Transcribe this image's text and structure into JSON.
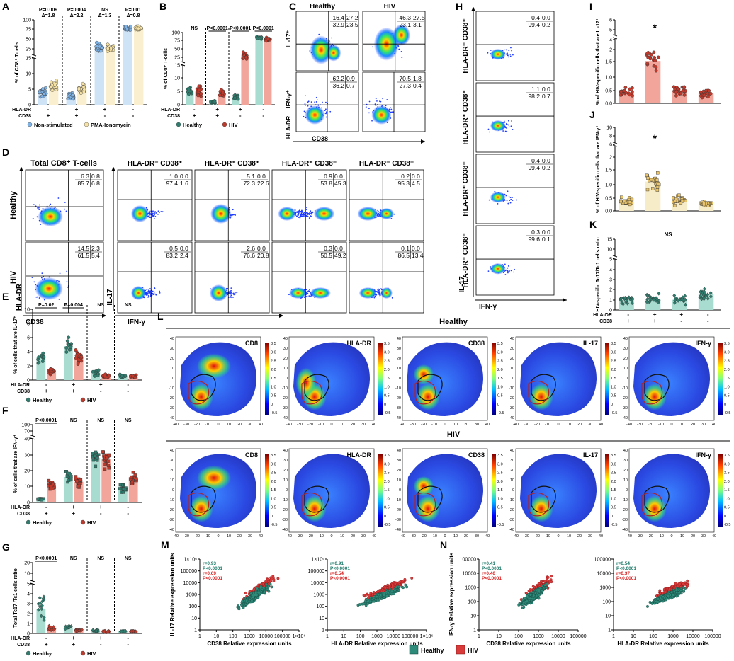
{
  "colors": {
    "healthy": "#2e7d6e",
    "healthy_bar": "#a8dcd0",
    "hiv": "#c0392b",
    "hiv_bar": "#f2a59a",
    "nonstim": "#7fb3e6",
    "pma": "#f5e1a3",
    "gold": "#e9c46a"
  },
  "panel_letters": [
    "A",
    "B",
    "C",
    "D",
    "E",
    "F",
    "G",
    "H",
    "I",
    "J",
    "K",
    "L",
    "M",
    "N"
  ],
  "axis_labels": {
    "pct_cd8": "% of CD8⁺ T-cells",
    "hla_dr": "HLA-DR",
    "cd38": "CD38",
    "il17_plus": "IL-17⁺",
    "ifng_plus": "IFN-γ⁺",
    "il17": "IL-17",
    "ifng": "IFN-γ",
    "pct_il17": "% of cells that are IL-17⁺",
    "pct_ifng": "% of cells that are IFN-γ⁺",
    "tc17_ratio": "Total Tc17 /Tc1 cells ratio",
    "hiv_il17": "% of HIV-specific cells that are IL-17⁺",
    "hiv_ifng": "% of HIV-specific cells that are IFN-γ⁺",
    "hiv_ratio": "HIV-specific Tc17/Tc1 cells ratio",
    "il17_rel": "IL-17 Relative expression units",
    "ifng_rel": "IFN-γ Relative expression units",
    "cd38_rel": "CD38 Relative expression units",
    "hladr_rel": "HLA-DR Relative expression units"
  },
  "signs": {
    "hla_dr": [
      "-",
      "+",
      "+",
      "-"
    ],
    "cd38": [
      "+",
      "+",
      "-",
      "-"
    ]
  },
  "legends": {
    "nonstim": "Non-stimulated",
    "pma": "PMA-Ionomycin",
    "healthy": "Healthy",
    "hiv": "HIV"
  },
  "panelA": {
    "stats": [
      {
        "p": "P=0.009",
        "d": "Δ=1.8"
      },
      {
        "p": "P=0.004",
        "d": "Δ=2.2"
      },
      {
        "p": "NS",
        "d": "Δ=1.3"
      },
      {
        "p": "P=0.01",
        "d": "Δ=0.8"
      }
    ],
    "yticks": [
      "100",
      "75",
      "50",
      "25",
      "15",
      "10",
      "5",
      "0"
    ]
  },
  "panelB": {
    "stats": [
      "NS",
      "P<0.0001",
      "P<0.0001",
      "P<0.0001"
    ],
    "yticks": [
      "100",
      "75",
      "50",
      "25",
      "15",
      "10",
      "5",
      "0"
    ]
  },
  "panelC": {
    "titles": [
      "Healthy",
      "HIV"
    ],
    "quads_top": [
      [
        "16.4",
        "27.2",
        "32.9",
        "23.5"
      ],
      [
        "46.3",
        "27.5",
        "23.1",
        "3.1"
      ]
    ],
    "quads_bottom": [
      [
        "62.2",
        "0.9",
        "36.2",
        "0.7"
      ],
      [
        "70.5",
        "1.8",
        "27.3",
        "0.4"
      ]
    ]
  },
  "panelD": {
    "total_title": "Total CD8⁺ T-cells",
    "titles": [
      "HLA-DR⁻ CD38⁺",
      "HLA-DR⁺ CD38⁺",
      "HLA-DR⁺ CD38⁻",
      "HLA-DR⁻ CD38⁻"
    ],
    "rows": [
      "Healthy",
      "HIV"
    ],
    "total_quads": [
      [
        "6.3",
        "0.8",
        "85.7",
        "6.8"
      ],
      [
        "14.5",
        "2.3",
        "61.5",
        "5.4"
      ]
    ],
    "quads": [
      [
        [
          "1.0",
          "0.0",
          "97.4",
          "1.6"
        ],
        [
          "5.1",
          "0.0",
          "72.3",
          "22.6"
        ],
        [
          "0.9",
          "0.0",
          "53.8",
          "45.3"
        ],
        [
          "0.2",
          "0.0",
          "95.3",
          "4.5"
        ]
      ],
      [
        [
          "0.5",
          "0.0",
          "83.2",
          "2.4"
        ],
        [
          "2.6",
          "0.0",
          "76.6",
          "20.8"
        ],
        [
          "0.3",
          "0.0",
          "50.5",
          "49.2"
        ],
        [
          "0.1",
          "0.0",
          "86.5",
          "13.4"
        ]
      ]
    ]
  },
  "panelE": {
    "stats": [
      "P=0.02",
      "P=0.004",
      "NS",
      "NS"
    ],
    "yticks": [
      "10",
      "8",
      "6",
      "4",
      "2",
      "0"
    ]
  },
  "panelF": {
    "stats": [
      "P<0.0001",
      "NS",
      "NS",
      "NS"
    ],
    "yticks": [
      "100",
      "70",
      "40",
      "30",
      "20",
      "10",
      "0"
    ]
  },
  "panelG": {
    "stats": [
      "P<0.0001",
      "NS",
      "NS",
      "NS"
    ],
    "yticks": [
      "20",
      "10",
      "5",
      "4",
      "3",
      "2",
      "1",
      "0"
    ]
  },
  "panelH": {
    "titles": [
      "HLA-DR⁻ CD38⁺",
      "HLA-DR⁺ CD38⁺",
      "HLA-DR⁺ CD38⁻",
      "HLA-DR⁻ CD38⁻"
    ],
    "quads": [
      [
        "0.4",
        "0.0",
        "99.4",
        "0.2"
      ],
      [
        "1.1",
        "0.0",
        "98.2",
        "0.7"
      ],
      [
        "0.4",
        "0.0",
        "99.4",
        "0.2"
      ],
      [
        "0.3",
        "0.0",
        "99.6",
        "0.1"
      ]
    ]
  },
  "panelI": {
    "yticks": [
      "6",
      "5",
      "4",
      "2",
      "1.5",
      "1.0",
      "0.5",
      "0.0"
    ],
    "star": "*"
  },
  "panelJ": {
    "yticks": [
      "10",
      "8",
      "6",
      "2",
      "1.5",
      "1.0",
      "0.5",
      "0.0"
    ],
    "star": "*"
  },
  "panelK": {
    "yticks": [
      "15",
      "10",
      "5",
      "4",
      "3",
      "2",
      "1",
      "0"
    ],
    "stat": "NS"
  },
  "panelL": {
    "healthy_title": "Healthy",
    "hiv_title": "HIV",
    "markers": [
      "CD8",
      "HLA-DR",
      "CD38",
      "IL-17",
      "IFN-γ"
    ],
    "xticks": [
      "-40",
      "-30",
      "-20",
      "-10",
      "0",
      "10",
      "20",
      "30",
      "40"
    ],
    "yticks": [
      "40",
      "30",
      "20",
      "10",
      "0",
      "-10",
      "-20",
      "-30",
      "-40"
    ],
    "scale": [
      "3.5",
      "3.0",
      "2.5",
      "2.0",
      "1.5",
      "1.0",
      "0.5",
      "0",
      "-0.5"
    ]
  },
  "panelM": {
    "stats": [
      {
        "r1": "r=0.93",
        "p1": "P<0.0001",
        "r2": "r=0.69",
        "p2": "P<0.0001"
      },
      {
        "r1": "r=0.91",
        "p1": "P<0.0001",
        "r2": "r=0.54",
        "p2": "P<0.0001"
      }
    ],
    "yticks": [
      "1×10⁶",
      "100000",
      "10000",
      "1000",
      "100",
      "10",
      "1"
    ],
    "xticks": [
      "1",
      "10",
      "100",
      "1000",
      "10000",
      "100000",
      "1×10⁶"
    ]
  },
  "panelN": {
    "stats": [
      {
        "r1": "r=0.41",
        "p1": "P<0.0001",
        "r2": "r=0.40",
        "p2": "P<0.0001"
      },
      {
        "r1": "r=0.54",
        "p1": "P<0.0001",
        "r2": "r=0.37",
        "p2": "P<0.0001"
      }
    ],
    "yticks": [
      "100000",
      "10000",
      "1000",
      "100",
      "10",
      "1"
    ],
    "xticks": [
      "1",
      "10",
      "100",
      "1000",
      "10000",
      "100000"
    ]
  },
  "chart_data": [
    {
      "panel": "A",
      "type": "bar",
      "title": "",
      "ylabel": "% of CD8⁺ T-cells",
      "ylim": [
        0,
        100
      ],
      "categories": [
        "HLA-DR- CD38+",
        "HLA-DR+ CD38+",
        "HLA-DR+ CD38-",
        "HLA-DR- CD38-"
      ],
      "series": [
        {
          "name": "Non-stimulated",
          "values": [
            4,
            3,
            35,
            85
          ]
        },
        {
          "name": "PMA-Ionomycin",
          "values": [
            6,
            5,
            30,
            84
          ]
        }
      ]
    },
    {
      "panel": "B",
      "type": "bar",
      "ylabel": "% of CD8⁺ T-cells",
      "ylim": [
        0,
        100
      ],
      "categories": [
        "HLA-DR- CD38+",
        "HLA-DR+ CD38+",
        "HLA-DR+ CD38-",
        "HLA-DR- CD38-"
      ],
      "series": [
        {
          "name": "Healthy",
          "values": [
            5,
            1,
            3,
            85
          ]
        },
        {
          "name": "HIV",
          "values": [
            5,
            4,
            35,
            80
          ]
        }
      ]
    },
    {
      "panel": "E",
      "type": "bar",
      "ylabel": "% of cells that are IL-17⁺",
      "ylim": [
        0,
        10
      ],
      "categories": [
        "HLA-DR- CD38+",
        "HLA-DR+ CD38+",
        "HLA-DR+ CD38-",
        "HLA-DR- CD38-"
      ],
      "series": [
        {
          "name": "Healthy",
          "values": [
            3.2,
            4.8,
            1.1,
            0.6
          ]
        },
        {
          "name": "HIV",
          "values": [
            1.2,
            3.3,
            0.6,
            0.5
          ]
        }
      ]
    },
    {
      "panel": "F",
      "type": "bar",
      "ylabel": "% of cells that are IFN-γ⁺",
      "ylim": [
        0,
        100
      ],
      "categories": [
        "HLA-DR- CD38+",
        "HLA-DR+ CD38+",
        "HLA-DR+ CD38-",
        "HLA-DR- CD38-"
      ],
      "series": [
        {
          "name": "Healthy",
          "values": [
            2,
            16,
            28,
            10
          ]
        },
        {
          "name": "HIV",
          "values": [
            10,
            13,
            27,
            14
          ]
        }
      ]
    },
    {
      "panel": "G",
      "type": "bar",
      "ylabel": "Total Tc17 /Tc1 cells ratio",
      "ylim": [
        0,
        20
      ],
      "categories": [
        "HLA-DR- CD38+",
        "HLA-DR+ CD38+",
        "HLA-DR+ CD38-",
        "HLA-DR- CD38-"
      ],
      "series": [
        {
          "name": "Healthy",
          "values": [
            2.5,
            0.6,
            0.3,
            0.2
          ]
        },
        {
          "name": "HIV",
          "values": [
            0.5,
            0.3,
            0.2,
            0.2
          ]
        }
      ]
    },
    {
      "panel": "I",
      "type": "bar",
      "ylabel": "% of HIV-specific cells that are IL-17⁺",
      "ylim": [
        0,
        6
      ],
      "categories": [
        "HLA-DR- CD38+",
        "HLA-DR+ CD38+",
        "HLA-DR+ CD38-",
        "HLA-DR- CD38-"
      ],
      "series": [
        {
          "name": "HIV",
          "values": [
            0.35,
            1.3,
            0.4,
            0.3
          ]
        }
      ]
    },
    {
      "panel": "J",
      "type": "bar",
      "ylabel": "% of HIV-specific cells that are IFN-γ⁺",
      "ylim": [
        0,
        10
      ],
      "categories": [
        "HLA-DR- CD38+",
        "HLA-DR+ CD38+",
        "HLA-DR+ CD38-",
        "HLA-DR- CD38-"
      ],
      "series": [
        {
          "name": "HIV",
          "values": [
            0.3,
            0.9,
            0.35,
            0.2
          ]
        }
      ]
    },
    {
      "panel": "K",
      "type": "bar",
      "ylabel": "HIV-specific Tc17/Tc1 cells ratio",
      "ylim": [
        0,
        15
      ],
      "categories": [
        "HLA-DR- CD38+",
        "HLA-DR+ CD38+",
        "HLA-DR+ CD38-",
        "HLA-DR- CD38-"
      ],
      "series": [
        {
          "name": "HIV",
          "values": [
            1.0,
            1.1,
            1.0,
            1.6
          ]
        }
      ]
    },
    {
      "panel": "M",
      "type": "scatter",
      "xlabel": "CD38 / HLA-DR Relative expression units",
      "ylabel": "IL-17 Relative expression units",
      "series": [
        {
          "name": "Healthy",
          "r": [
            0.93,
            0.91
          ]
        },
        {
          "name": "HIV",
          "r": [
            0.69,
            0.54
          ]
        }
      ]
    },
    {
      "panel": "N",
      "type": "scatter",
      "xlabel": "CD38 / HLA-DR Relative expression units",
      "ylabel": "IFN-γ Relative expression units",
      "series": [
        {
          "name": "Healthy",
          "r": [
            0.41,
            0.54
          ]
        },
        {
          "name": "HIV",
          "r": [
            0.4,
            0.37
          ]
        }
      ]
    }
  ]
}
